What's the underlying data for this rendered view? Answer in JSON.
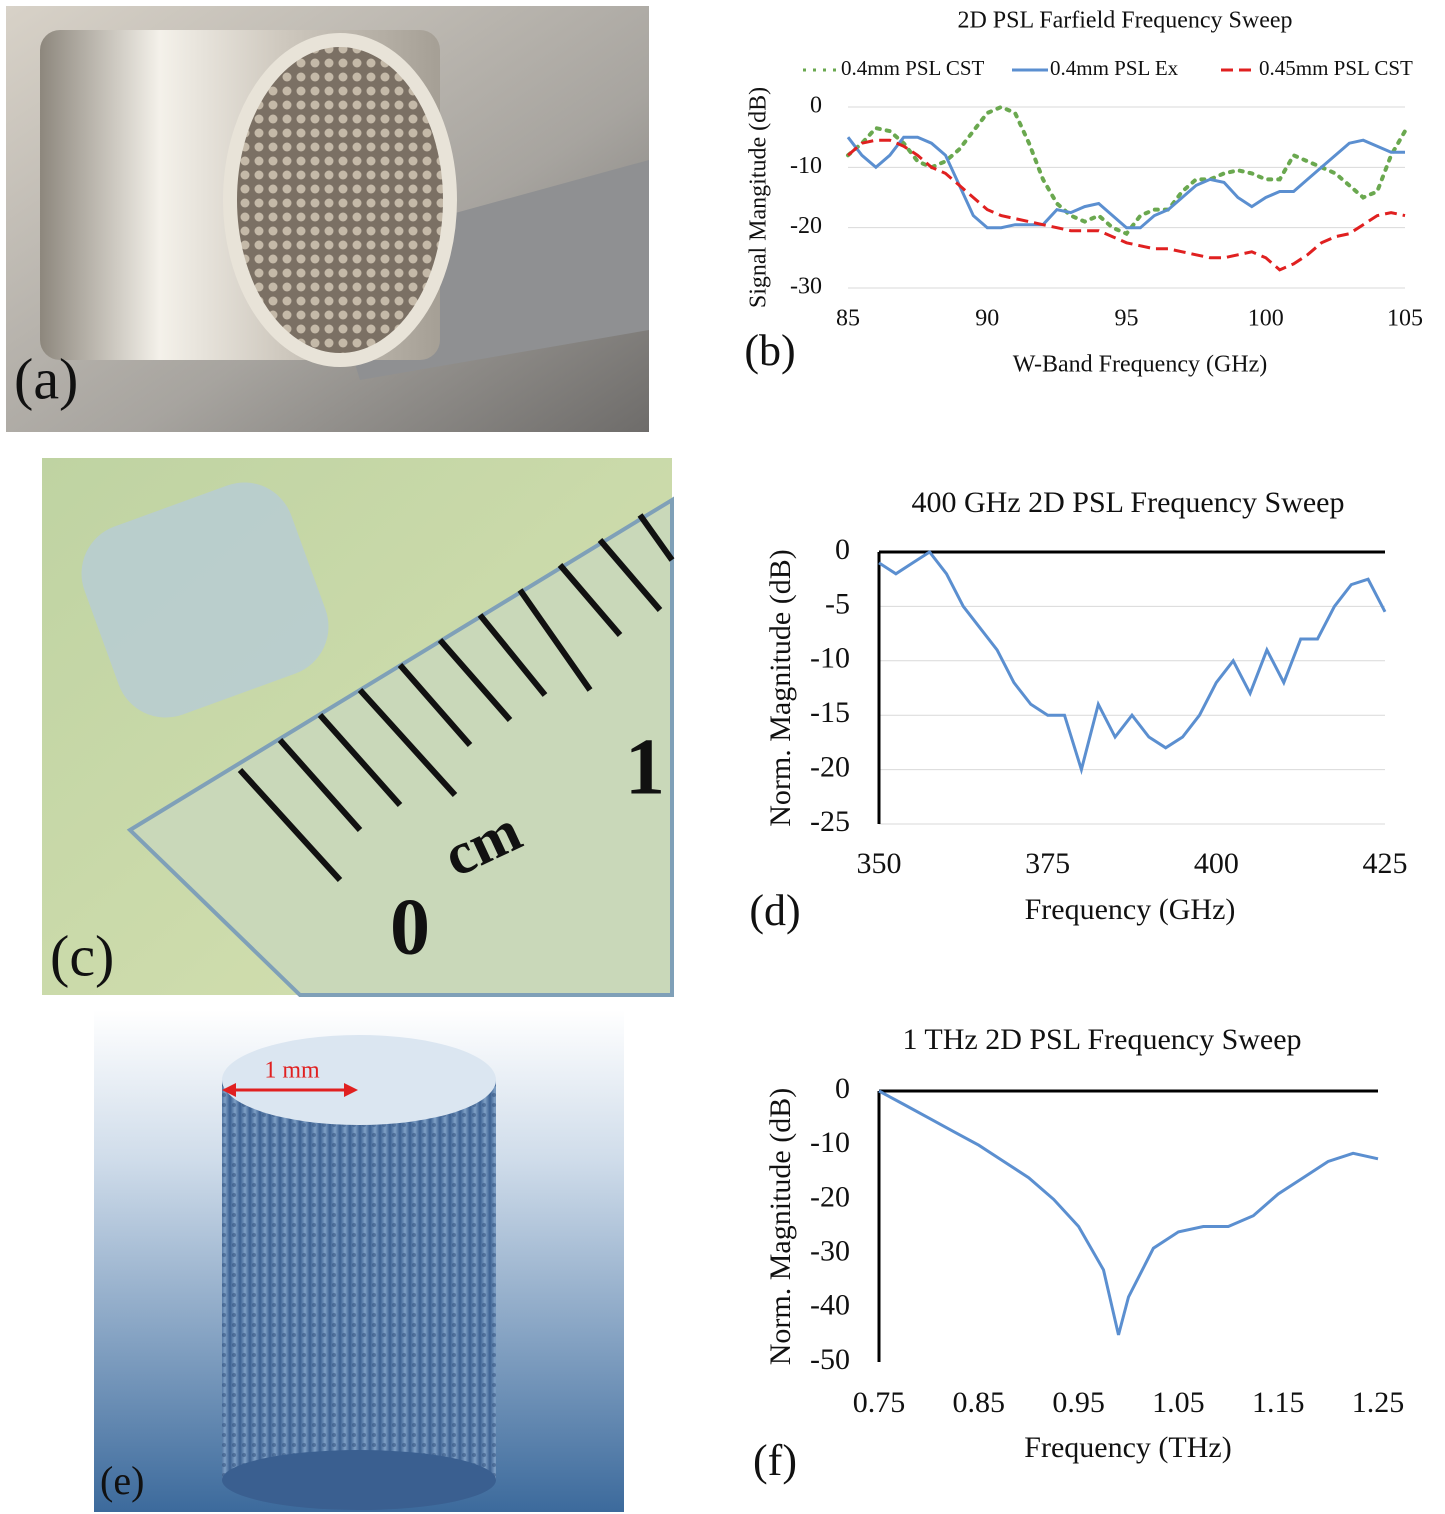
{
  "photos": [
    {
      "label": "(a)"
    },
    {
      "label": "(c)",
      "ruler_texts": [
        "0",
        "cm",
        "1"
      ]
    },
    {
      "label": "(e)",
      "scale_bar": "1 mm"
    }
  ],
  "chart_data": [
    {
      "type": "line",
      "panel_label": "(b)",
      "title": "2D PSL Farfield Frequency Sweep",
      "x_label": "W-Band Frequency (GHz)",
      "y_label": "Signal Mangitude (dB)",
      "x": [
        85,
        85.5,
        86,
        86.5,
        87,
        87.5,
        88,
        88.5,
        89,
        89.5,
        90,
        90.5,
        91,
        91.5,
        92,
        92.5,
        93,
        93.5,
        94,
        94.5,
        95,
        95.5,
        96,
        96.5,
        97,
        97.5,
        98,
        98.5,
        99,
        99.5,
        100,
        100.5,
        101,
        101.5,
        102,
        102.5,
        103,
        103.5,
        104,
        104.5,
        105
      ],
      "series": [
        {
          "name": "0.4mm PSL CST",
          "color": "#6aa84f",
          "line_style": "dotted",
          "values": [
            -8,
            -6,
            -3.5,
            -4,
            -6,
            -9,
            -10,
            -9,
            -7,
            -4,
            -1,
            0,
            -1,
            -6,
            -12,
            -16,
            -18,
            -19,
            -18,
            -20,
            -21,
            -18,
            -17,
            -17,
            -14,
            -12,
            -12,
            -11,
            -10.5,
            -11,
            -12,
            -12,
            -8,
            -9,
            -10,
            -11,
            -13,
            -15,
            -14,
            -8,
            -4
          ]
        },
        {
          "name": "0.4mm PSL Ex",
          "color": "#5b8fd0",
          "line_style": "solid",
          "values": [
            -5,
            -8,
            -10,
            -8,
            -5,
            -5,
            -6,
            -8,
            -13,
            -18,
            -20,
            -20,
            -19.5,
            -19.5,
            -19.5,
            -17,
            -17.5,
            -16.5,
            -16,
            -18,
            -20,
            -20,
            -18,
            -17,
            -15,
            -13,
            -12,
            -12.5,
            -15,
            -16.5,
            -15,
            -14,
            -14,
            -12,
            -10,
            -8,
            -6,
            -5.5,
            -6.5,
            -7.5,
            -7.5
          ]
        },
        {
          "name": "0.45mm PSL CST",
          "color": "#e02020",
          "line_style": "dashed",
          "values": [
            -8,
            -6,
            -5.5,
            -5.5,
            -6.5,
            -8,
            -10,
            -11,
            -13,
            -15,
            -17,
            -18,
            -18.5,
            -19,
            -19.5,
            -20,
            -20.5,
            -20.5,
            -20.5,
            -21.5,
            -22.5,
            -23,
            -23.5,
            -23.5,
            -24,
            -24.5,
            -25,
            -25,
            -24.5,
            -24,
            -25,
            -27,
            -26,
            -24.5,
            -22.5,
            -21.5,
            -21,
            -19.5,
            -18,
            -17.5,
            -18
          ]
        }
      ],
      "xlim": [
        85,
        105
      ],
      "xticks": [
        85,
        90,
        95,
        100,
        105
      ],
      "ylim": [
        -30,
        0
      ],
      "yticks": [
        0,
        -10,
        -20,
        -30
      ],
      "grid": true,
      "legend": "top"
    },
    {
      "type": "line",
      "panel_label": "(d)",
      "title": "400 GHz 2D PSL Frequency Sweep",
      "x_label": "Frequency (GHz)",
      "y_label": "Norm. Magnitude (dB)",
      "x": [
        350,
        352.5,
        355,
        357.5,
        360,
        362.5,
        365,
        367.5,
        370,
        372.5,
        375,
        377.5,
        380,
        382.5,
        385,
        387.5,
        390,
        392.5,
        395,
        397.5,
        400,
        402.5,
        405,
        407.5,
        410,
        412.5,
        415,
        417.5,
        420,
        422.5,
        425
      ],
      "values": [
        -1,
        -2,
        -1,
        0,
        -2,
        -5,
        -7,
        -9,
        -12,
        -14,
        -15,
        -15,
        -20,
        -14,
        -17,
        -15,
        -17,
        -18,
        -17,
        -15,
        -12,
        -10,
        -13,
        -9,
        -12,
        -8,
        -8,
        -5,
        -3,
        -2.5,
        -5.5
      ],
      "color": "#5b8fd0",
      "xlim": [
        350,
        425
      ],
      "xticks": [
        350,
        375,
        400,
        425
      ],
      "ylim": [
        -25,
        0
      ],
      "yticks": [
        0,
        -5,
        -10,
        -15,
        -20,
        -25
      ],
      "grid": true
    },
    {
      "type": "line",
      "panel_label": "(f)",
      "title": "1 THz 2D PSL Frequency Sweep",
      "x_label": "Frequency (THz)",
      "y_label": "Norm. Magnitude (dB)",
      "x": [
        0.75,
        0.775,
        0.8,
        0.825,
        0.85,
        0.875,
        0.9,
        0.925,
        0.95,
        0.975,
        0.99,
        1.0,
        1.025,
        1.05,
        1.075,
        1.1,
        1.125,
        1.15,
        1.175,
        1.2,
        1.225,
        1.25
      ],
      "values": [
        0,
        -2.5,
        -5,
        -7.5,
        -10,
        -13,
        -16,
        -20,
        -25,
        -33,
        -45,
        -38,
        -29,
        -26,
        -25,
        -25,
        -23,
        -19,
        -16,
        -13,
        -11.5,
        -12.5
      ],
      "color": "#5b8fd0",
      "xlim": [
        0.75,
        1.25
      ],
      "xticks": [
        0.75,
        0.85,
        0.95,
        1.05,
        1.15,
        1.25
      ],
      "ylim": [
        -50,
        0
      ],
      "yticks": [
        0,
        -10,
        -20,
        -30,
        -40,
        -50
      ],
      "grid": false
    }
  ]
}
